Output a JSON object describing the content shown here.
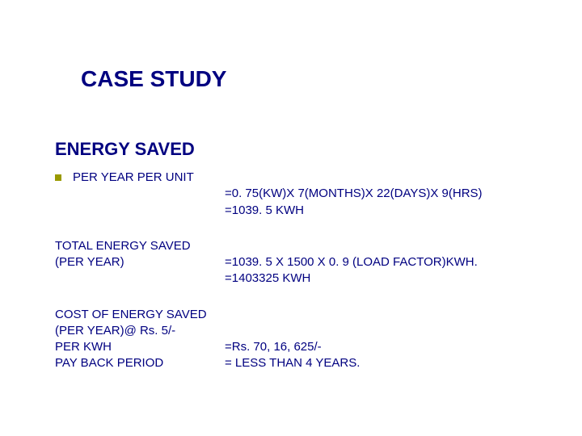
{
  "title": "CASE STUDY",
  "subtitle": "ENERGY SAVED",
  "perYearUnit": {
    "label": "PER YEAR PER UNIT",
    "line1": "=0. 75(KW)X 7(MONTHS)X 22(DAYS)X 9(HRS)",
    "line2": "=1039. 5 KWH"
  },
  "totalEnergy": {
    "label1": "TOTAL ENERGY SAVED",
    "label2": "(PER YEAR)",
    "line1": "=1039. 5 X 1500 X 0. 9 (LOAD FACTOR)KWH.",
    "line2": "=1403325 KWH"
  },
  "cost": {
    "label1": "COST OF ENERGY SAVED",
    "label2": "(PER YEAR)@ Rs. 5/-",
    "label3": "PER KWH",
    "value": "=Rs. 70, 16, 625/-"
  },
  "payback": {
    "label": "PAY BACK PERIOD",
    "value": "= LESS THAN 4 YEARS."
  },
  "colors": {
    "text": "#000080",
    "bullet": "#9a9a00",
    "background": "#ffffff"
  },
  "fontsize": {
    "title": 28,
    "subtitle": 22,
    "body": 15
  }
}
